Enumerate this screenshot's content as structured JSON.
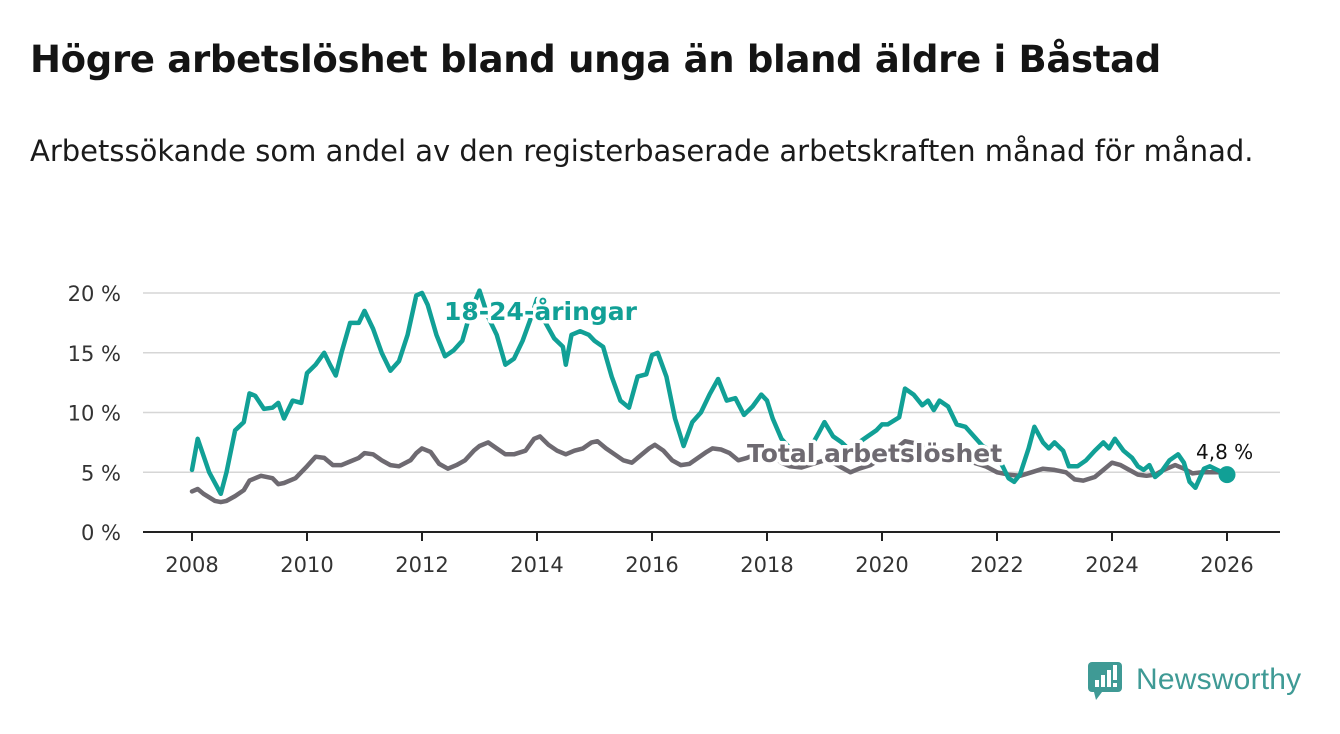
{
  "title": "Högre arbetslöshet bland unga än bland äldre i Båstad",
  "subtitle": "Arbetssökande som andel av den registerbaserade arbetskraften månad för månad.",
  "logo": {
    "text": "Newsworthy",
    "icon": "newsworthy-chart-icon"
  },
  "colors": {
    "youth": "#11a096",
    "total": "#6e6a71",
    "logo": "#3f9a95"
  },
  "chart_data": {
    "type": "line",
    "x_unit": "year",
    "xlim": [
      2008,
      2026
    ],
    "ylim": [
      0,
      20
    ],
    "x_ticks": [
      "2008",
      "2010",
      "2012",
      "2014",
      "2016",
      "2018",
      "2020",
      "2022",
      "2024",
      "2026"
    ],
    "y_ticks": [
      "0 %",
      "5 %",
      "10 %",
      "15 %",
      "20 %"
    ],
    "grid": true,
    "series": [
      {
        "name": "18-24-åringar",
        "label": "18-24-åringar",
        "color": "#11a096",
        "end_label": "4,8 %",
        "end_value": 4.8,
        "points": [
          [
            2008.0,
            5.2
          ],
          [
            2008.1,
            7.8
          ],
          [
            2008.3,
            5.0
          ],
          [
            2008.5,
            3.2
          ],
          [
            2008.6,
            5.0
          ],
          [
            2008.75,
            8.5
          ],
          [
            2008.9,
            9.2
          ],
          [
            2009.0,
            11.6
          ],
          [
            2009.1,
            11.4
          ],
          [
            2009.25,
            10.3
          ],
          [
            2009.4,
            10.4
          ],
          [
            2009.5,
            10.8
          ],
          [
            2009.6,
            9.5
          ],
          [
            2009.75,
            11.0
          ],
          [
            2009.9,
            10.8
          ],
          [
            2010.0,
            13.3
          ],
          [
            2010.15,
            14.0
          ],
          [
            2010.3,
            15.0
          ],
          [
            2010.4,
            14.0
          ],
          [
            2010.5,
            13.1
          ],
          [
            2010.6,
            15.0
          ],
          [
            2010.75,
            17.5
          ],
          [
            2010.9,
            17.5
          ],
          [
            2011.0,
            18.5
          ],
          [
            2011.15,
            17.0
          ],
          [
            2011.3,
            15.0
          ],
          [
            2011.45,
            13.5
          ],
          [
            2011.6,
            14.3
          ],
          [
            2011.75,
            16.5
          ],
          [
            2011.9,
            19.8
          ],
          [
            2012.0,
            20.0
          ],
          [
            2012.1,
            19.0
          ],
          [
            2012.25,
            16.5
          ],
          [
            2012.4,
            14.7
          ],
          [
            2012.55,
            15.2
          ],
          [
            2012.7,
            16.0
          ],
          [
            2012.85,
            18.5
          ],
          [
            2013.0,
            20.2
          ],
          [
            2013.15,
            18.0
          ],
          [
            2013.3,
            16.5
          ],
          [
            2013.45,
            14.0
          ],
          [
            2013.6,
            14.5
          ],
          [
            2013.75,
            16.0
          ],
          [
            2013.9,
            18.0
          ],
          [
            2014.0,
            19.5
          ],
          [
            2014.15,
            17.5
          ],
          [
            2014.3,
            16.2
          ],
          [
            2014.45,
            15.5
          ],
          [
            2014.5,
            14.0
          ],
          [
            2014.6,
            16.5
          ],
          [
            2014.75,
            16.8
          ],
          [
            2014.9,
            16.5
          ],
          [
            2015.0,
            16.0
          ],
          [
            2015.15,
            15.5
          ],
          [
            2015.3,
            13.0
          ],
          [
            2015.45,
            11.0
          ],
          [
            2015.6,
            10.4
          ],
          [
            2015.75,
            13.0
          ],
          [
            2015.9,
            13.2
          ],
          [
            2016.0,
            14.8
          ],
          [
            2016.1,
            15.0
          ],
          [
            2016.25,
            13.0
          ],
          [
            2016.4,
            9.5
          ],
          [
            2016.55,
            7.2
          ],
          [
            2016.7,
            9.2
          ],
          [
            2016.85,
            10.0
          ],
          [
            2017.0,
            11.5
          ],
          [
            2017.15,
            12.8
          ],
          [
            2017.3,
            11.0
          ],
          [
            2017.45,
            11.2
          ],
          [
            2017.6,
            9.8
          ],
          [
            2017.75,
            10.5
          ],
          [
            2017.9,
            11.5
          ],
          [
            2018.0,
            11.0
          ],
          [
            2018.1,
            9.5
          ],
          [
            2018.25,
            7.8
          ],
          [
            2018.4,
            7.0
          ],
          [
            2018.6,
            6.2
          ],
          [
            2018.75,
            7.0
          ],
          [
            2018.9,
            8.3
          ],
          [
            2019.0,
            9.2
          ],
          [
            2019.15,
            8.0
          ],
          [
            2019.3,
            7.5
          ],
          [
            2019.45,
            6.8
          ],
          [
            2019.6,
            7.5
          ],
          [
            2019.75,
            8.0
          ],
          [
            2019.9,
            8.5
          ],
          [
            2020.0,
            9.0
          ],
          [
            2020.1,
            9.0
          ],
          [
            2020.3,
            9.6
          ],
          [
            2020.4,
            12.0
          ],
          [
            2020.55,
            11.5
          ],
          [
            2020.7,
            10.6
          ],
          [
            2020.8,
            11.0
          ],
          [
            2020.9,
            10.2
          ],
          [
            2021.0,
            11.0
          ],
          [
            2021.15,
            10.5
          ],
          [
            2021.3,
            9.0
          ],
          [
            2021.45,
            8.8
          ],
          [
            2021.6,
            8.0
          ],
          [
            2021.75,
            7.2
          ],
          [
            2021.9,
            6.8
          ],
          [
            2022.0,
            6.3
          ],
          [
            2022.1,
            5.5
          ],
          [
            2022.2,
            4.5
          ],
          [
            2022.3,
            4.2
          ],
          [
            2022.4,
            4.8
          ],
          [
            2022.55,
            7.0
          ],
          [
            2022.65,
            8.8
          ],
          [
            2022.8,
            7.5
          ],
          [
            2022.9,
            7.0
          ],
          [
            2023.0,
            7.5
          ],
          [
            2023.15,
            6.8
          ],
          [
            2023.25,
            5.5
          ],
          [
            2023.4,
            5.5
          ],
          [
            2023.55,
            6.0
          ],
          [
            2023.7,
            6.8
          ],
          [
            2023.85,
            7.5
          ],
          [
            2023.95,
            7.0
          ],
          [
            2024.05,
            7.8
          ],
          [
            2024.2,
            6.8
          ],
          [
            2024.35,
            6.2
          ],
          [
            2024.45,
            5.5
          ],
          [
            2024.55,
            5.2
          ],
          [
            2024.65,
            5.6
          ],
          [
            2024.75,
            4.6
          ],
          [
            2024.85,
            5.0
          ],
          [
            2025.0,
            6.0
          ],
          [
            2025.15,
            6.5
          ],
          [
            2025.25,
            5.8
          ],
          [
            2025.35,
            4.2
          ],
          [
            2025.45,
            3.7
          ],
          [
            2025.6,
            5.3
          ],
          [
            2025.7,
            5.5
          ],
          [
            2026.0,
            4.8
          ]
        ]
      },
      {
        "name": "Total arbetslöshet",
        "label": "Total arbetslöshet",
        "color": "#6e6a71",
        "points": [
          [
            2008.0,
            3.4
          ],
          [
            2008.1,
            3.6
          ],
          [
            2008.2,
            3.2
          ],
          [
            2008.4,
            2.6
          ],
          [
            2008.5,
            2.5
          ],
          [
            2008.6,
            2.6
          ],
          [
            2008.75,
            3.0
          ],
          [
            2008.9,
            3.5
          ],
          [
            2009.0,
            4.3
          ],
          [
            2009.2,
            4.7
          ],
          [
            2009.4,
            4.5
          ],
          [
            2009.5,
            4.0
          ],
          [
            2009.6,
            4.1
          ],
          [
            2009.8,
            4.5
          ],
          [
            2010.0,
            5.5
          ],
          [
            2010.15,
            6.3
          ],
          [
            2010.3,
            6.2
          ],
          [
            2010.45,
            5.6
          ],
          [
            2010.6,
            5.6
          ],
          [
            2010.75,
            5.9
          ],
          [
            2010.9,
            6.2
          ],
          [
            2011.0,
            6.6
          ],
          [
            2011.15,
            6.5
          ],
          [
            2011.3,
            6.0
          ],
          [
            2011.45,
            5.6
          ],
          [
            2011.6,
            5.5
          ],
          [
            2011.8,
            6.0
          ],
          [
            2011.9,
            6.6
          ],
          [
            2012.0,
            7.0
          ],
          [
            2012.15,
            6.7
          ],
          [
            2012.3,
            5.7
          ],
          [
            2012.45,
            5.3
          ],
          [
            2012.6,
            5.6
          ],
          [
            2012.75,
            6.0
          ],
          [
            2012.9,
            6.8
          ],
          [
            2013.0,
            7.2
          ],
          [
            2013.15,
            7.5
          ],
          [
            2013.3,
            7.0
          ],
          [
            2013.45,
            6.5
          ],
          [
            2013.6,
            6.5
          ],
          [
            2013.8,
            6.8
          ],
          [
            2013.95,
            7.8
          ],
          [
            2014.05,
            8.0
          ],
          [
            2014.2,
            7.3
          ],
          [
            2014.35,
            6.8
          ],
          [
            2014.5,
            6.5
          ],
          [
            2014.65,
            6.8
          ],
          [
            2014.8,
            7.0
          ],
          [
            2014.95,
            7.5
          ],
          [
            2015.05,
            7.6
          ],
          [
            2015.2,
            7.0
          ],
          [
            2015.35,
            6.5
          ],
          [
            2015.5,
            6.0
          ],
          [
            2015.65,
            5.8
          ],
          [
            2015.8,
            6.4
          ],
          [
            2015.95,
            7.0
          ],
          [
            2016.05,
            7.3
          ],
          [
            2016.2,
            6.8
          ],
          [
            2016.35,
            6.0
          ],
          [
            2016.5,
            5.6
          ],
          [
            2016.65,
            5.7
          ],
          [
            2016.8,
            6.2
          ],
          [
            2016.95,
            6.7
          ],
          [
            2017.05,
            7.0
          ],
          [
            2017.2,
            6.9
          ],
          [
            2017.35,
            6.6
          ],
          [
            2017.5,
            6.0
          ],
          [
            2017.65,
            6.2
          ],
          [
            2017.8,
            6.5
          ],
          [
            2017.95,
            6.6
          ],
          [
            2018.1,
            6.4
          ],
          [
            2018.25,
            5.8
          ],
          [
            2018.4,
            5.5
          ],
          [
            2018.6,
            5.4
          ],
          [
            2018.8,
            5.7
          ],
          [
            2019.0,
            6.0
          ],
          [
            2019.15,
            5.8
          ],
          [
            2019.3,
            5.4
          ],
          [
            2019.45,
            5.0
          ],
          [
            2019.6,
            5.3
          ],
          [
            2019.8,
            5.6
          ],
          [
            2020.0,
            6.2
          ],
          [
            2020.2,
            6.8
          ],
          [
            2020.4,
            7.6
          ],
          [
            2020.6,
            7.4
          ],
          [
            2020.8,
            7.0
          ],
          [
            2021.0,
            6.9
          ],
          [
            2021.2,
            6.6
          ],
          [
            2021.4,
            6.2
          ],
          [
            2021.6,
            5.8
          ],
          [
            2021.8,
            5.5
          ],
          [
            2022.0,
            5.0
          ],
          [
            2022.2,
            4.8
          ],
          [
            2022.4,
            4.7
          ],
          [
            2022.6,
            5.0
          ],
          [
            2022.8,
            5.3
          ],
          [
            2023.0,
            5.2
          ],
          [
            2023.2,
            5.0
          ],
          [
            2023.35,
            4.4
          ],
          [
            2023.5,
            4.3
          ],
          [
            2023.7,
            4.6
          ],
          [
            2023.85,
            5.2
          ],
          [
            2024.0,
            5.8
          ],
          [
            2024.15,
            5.6
          ],
          [
            2024.3,
            5.2
          ],
          [
            2024.45,
            4.8
          ],
          [
            2024.6,
            4.7
          ],
          [
            2024.75,
            4.8
          ],
          [
            2024.9,
            5.2
          ],
          [
            2025.1,
            5.6
          ],
          [
            2025.25,
            5.3
          ],
          [
            2025.4,
            4.9
          ],
          [
            2025.55,
            5.0
          ],
          [
            2025.7,
            5.0
          ],
          [
            2026.0,
            5.0
          ]
        ]
      }
    ]
  }
}
